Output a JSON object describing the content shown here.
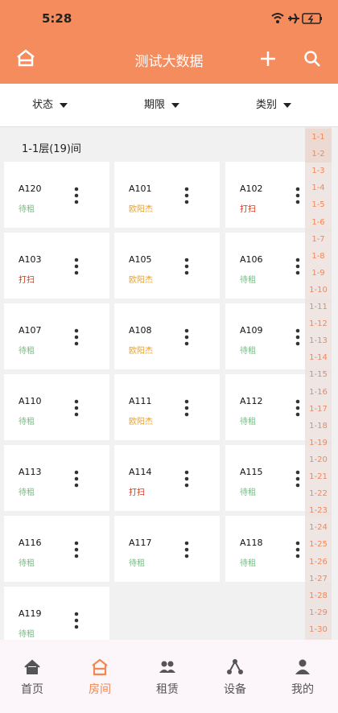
{
  "status_bar": {
    "time": "5:28"
  },
  "header": {
    "title": "测试大数据"
  },
  "filters": [
    "状态",
    "期限",
    "类别"
  ],
  "section": {
    "title": "1-1层(19)间"
  },
  "rooms": [
    {
      "name": "A120",
      "status": "待租",
      "color": "#6fbf7c"
    },
    {
      "name": "A101",
      "status": "欧阳杰",
      "color": "#e4a02e"
    },
    {
      "name": "A102",
      "status": "打扫",
      "color": "#d2381a"
    },
    {
      "name": "A103",
      "status": "打扫",
      "color": "#d2381a"
    },
    {
      "name": "A105",
      "status": "欧阳杰",
      "color": "#e4a02e"
    },
    {
      "name": "A106",
      "status": "待租",
      "color": "#6fbf7c"
    },
    {
      "name": "A107",
      "status": "待租",
      "color": "#6fbf7c"
    },
    {
      "name": "A108",
      "status": "欧阳杰",
      "color": "#e4a02e"
    },
    {
      "name": "A109",
      "status": "待租",
      "color": "#6fbf7c"
    },
    {
      "name": "A110",
      "status": "待租",
      "color": "#6fbf7c"
    },
    {
      "name": "A111",
      "status": "欧阳杰",
      "color": "#e4a02e"
    },
    {
      "name": "A112",
      "status": "待租",
      "color": "#6fbf7c"
    },
    {
      "name": "A113",
      "status": "待租",
      "color": "#6fbf7c"
    },
    {
      "name": "A114",
      "status": "打扫",
      "color": "#d2381a"
    },
    {
      "name": "A115",
      "status": "待租",
      "color": "#6fbf7c"
    },
    {
      "name": "A116",
      "status": "待租",
      "color": "#6fbf7c"
    },
    {
      "name": "A117",
      "status": "待租",
      "color": "#6fbf7c"
    },
    {
      "name": "A118",
      "status": "待租",
      "color": "#6fbf7c"
    },
    {
      "name": "A119",
      "status": "待租",
      "color": "#6fbf7c"
    }
  ],
  "floor_index": [
    "1-1",
    "1-2",
    "1-3",
    "1-4",
    "1-5",
    "1-6",
    "1-7",
    "1-8",
    "1-9",
    "1-10",
    "1-11",
    "1-12",
    "1-13",
    "1-14",
    "1-15",
    "1-16",
    "1-17",
    "1-18",
    "1-19",
    "1-20",
    "1-21",
    "1-22",
    "1-23",
    "1-24",
    "1-25",
    "1-26",
    "1-27",
    "1-28",
    "1-29",
    "1-30"
  ],
  "nav": [
    "首页",
    "房间",
    "租赁",
    "设备",
    "我的"
  ],
  "nav_active": 1
}
